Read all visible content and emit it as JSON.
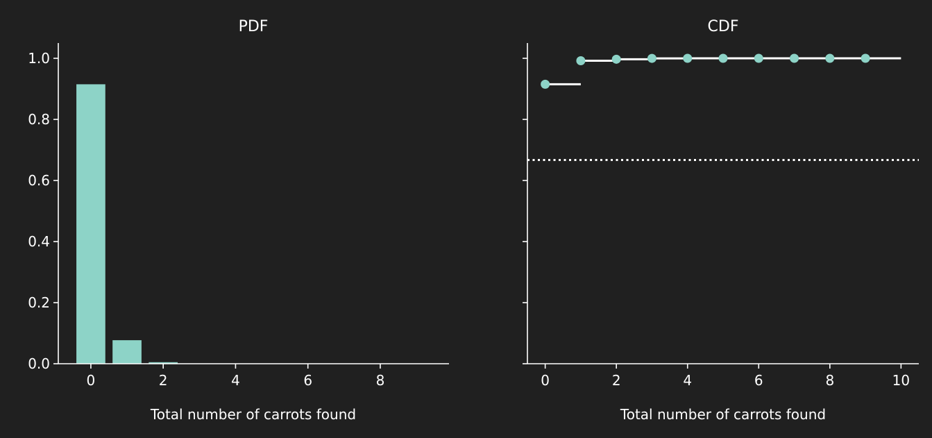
{
  "background": "#202020",
  "accent": "#8dd3c7",
  "chart_data": [
    {
      "type": "bar",
      "title": "PDF",
      "xlabel": "Total number of carrots found",
      "ylabel": "",
      "x": [
        0,
        1,
        2,
        3,
        4,
        5,
        6,
        7,
        8,
        9
      ],
      "values": [
        0.915,
        0.077,
        0.005,
        0.0002,
        0.0,
        0.0,
        0.0,
        0.0,
        0.0,
        0.0
      ],
      "xlim": [
        -0.9,
        9.9
      ],
      "ylim": [
        0,
        1.05
      ],
      "xticks": [
        "0",
        "2",
        "4",
        "6",
        "8"
      ],
      "yticks": [
        "0.0",
        "0.2",
        "0.4",
        "0.6",
        "0.8",
        "1.0"
      ],
      "grid": false,
      "color": "#8dd3c7"
    },
    {
      "type": "line",
      "subtype": "step-cdf",
      "title": "CDF",
      "xlabel": "Total number of carrots found",
      "ylabel": "",
      "x": [
        0,
        1,
        2,
        3,
        4,
        5,
        6,
        7,
        8,
        9
      ],
      "values": [
        0.915,
        0.992,
        0.997,
        0.9998,
        1.0,
        1.0,
        1.0,
        1.0,
        1.0,
        1.0
      ],
      "step_end": 10,
      "reference_line": 0.667,
      "xlim": [
        -0.5,
        10.5
      ],
      "ylim": [
        0,
        1.05
      ],
      "xticks": [
        "0",
        "2",
        "4",
        "6",
        "8",
        "10"
      ],
      "grid": false,
      "color": "#8dd3c7"
    }
  ]
}
